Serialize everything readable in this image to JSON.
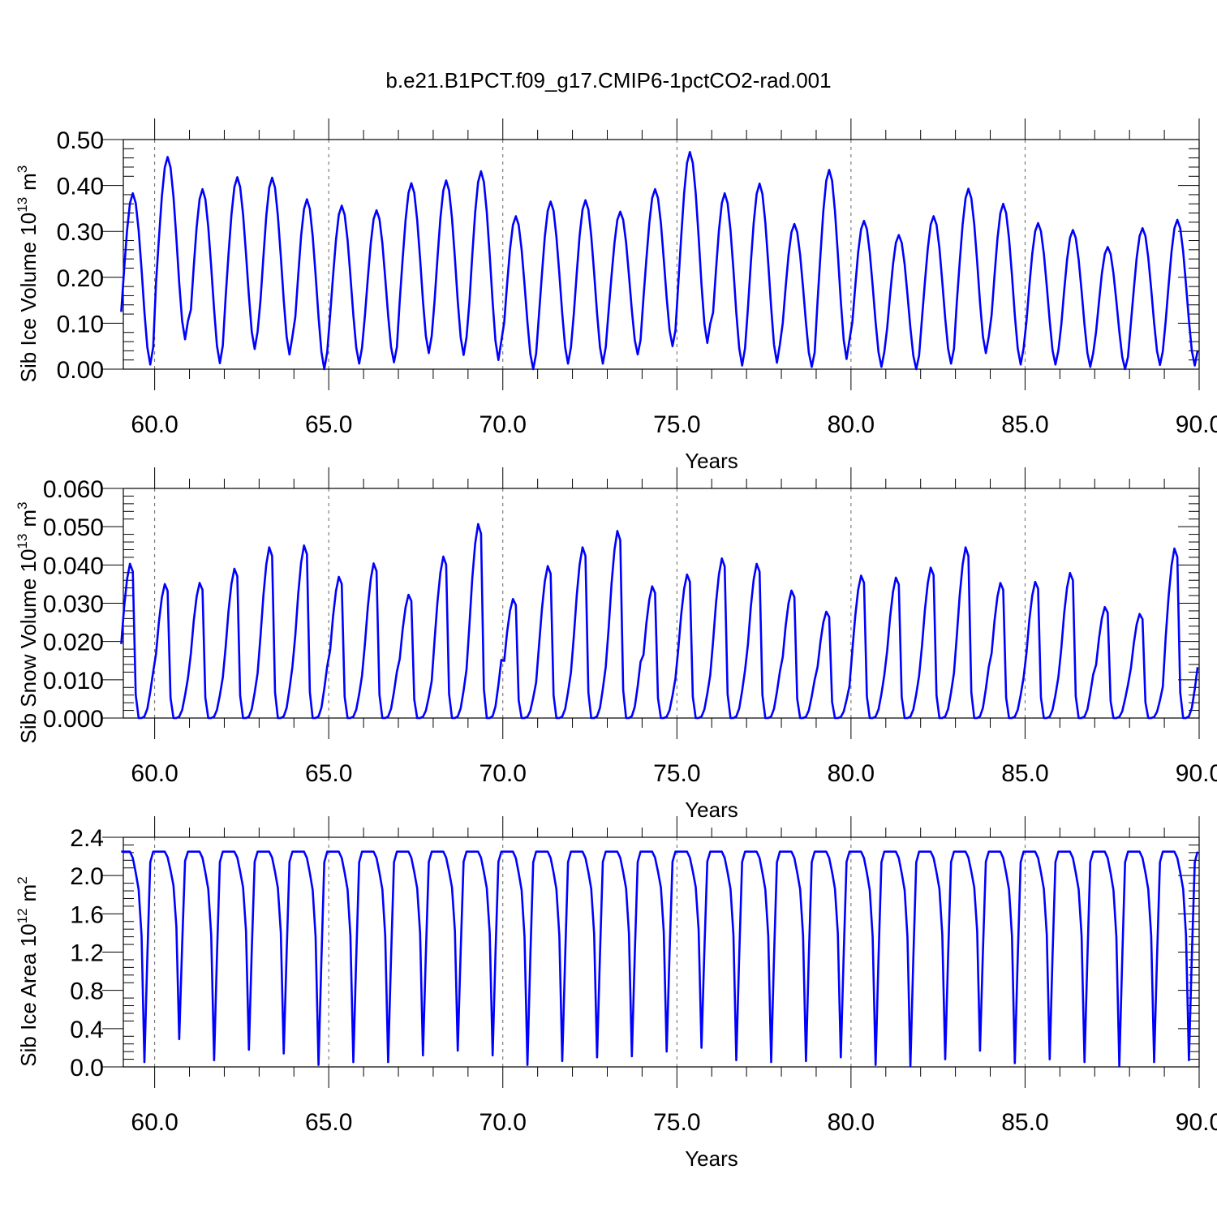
{
  "figure_title": "b.e21.B1PCT.f09_g17.CMIP6-1pctCO2-rad.001",
  "series_color": "#0000ff",
  "chart_data": [
    {
      "type": "line",
      "ylabel_main": "Sib Ice Volume 10",
      "ylabel_exp": "13",
      "ylabel_unit": "m",
      "ylabel_unit_exp": "3",
      "xlabel": "Years",
      "xlim": [
        59.1,
        90.0
      ],
      "ylim": [
        0.0,
        0.5
      ],
      "yticks": [
        0.0,
        0.1,
        0.2,
        0.3,
        0.4,
        0.5
      ],
      "ytick_labels": [
        "0.00",
        "0.10",
        "0.20",
        "0.30",
        "0.40",
        "0.50"
      ],
      "xticks": [
        60,
        65,
        70,
        75,
        80,
        85,
        90
      ],
      "xtick_labels": [
        "60.0",
        "65.0",
        "70.0",
        "75.0",
        "80.0",
        "85.0",
        "90.0"
      ],
      "grid_x": true,
      "x_start": 59.04,
      "seasonal_peaks": [
        0.383,
        0.462,
        0.392,
        0.418,
        0.417,
        0.37,
        0.356,
        0.346,
        0.405,
        0.411,
        0.431,
        0.333,
        0.365,
        0.368,
        0.343,
        0.392,
        0.473,
        0.383,
        0.404,
        0.316,
        0.434,
        0.323,
        0.292,
        0.333,
        0.393,
        0.36,
        0.318,
        0.303,
        0.266,
        0.307,
        0.325
      ],
      "seasonal_minima": [
        0.01,
        0.065,
        0.013,
        0.044,
        0.032,
        0.0,
        0.012,
        0.015,
        0.035,
        0.031,
        0.02,
        0.0,
        0.012,
        0.012,
        0.032,
        0.05,
        0.057,
        0.008,
        0.014,
        0.005,
        0.022,
        0.005,
        0.0,
        0.012,
        0.035,
        0.01,
        0.01,
        0.005,
        0.0,
        0.009,
        0.008
      ],
      "series": [
        {
          "values": []
        }
      ]
    },
    {
      "type": "line",
      "ylabel_main": "Sib Snow Volume 10",
      "ylabel_exp": "13",
      "ylabel_unit": "m",
      "ylabel_unit_exp": "3",
      "xlabel": "Years",
      "xlim": [
        59.1,
        90.0
      ],
      "ylim": [
        0.0,
        0.06
      ],
      "yticks": [
        0.0,
        0.01,
        0.02,
        0.03,
        0.04,
        0.05,
        0.06
      ],
      "ytick_labels": [
        "0.000",
        "0.010",
        "0.020",
        "0.030",
        "0.040",
        "0.050",
        "0.060"
      ],
      "xticks": [
        60,
        65,
        70,
        75,
        80,
        85,
        90
      ],
      "xtick_labels": [
        "60.0",
        "65.0",
        "70.0",
        "75.0",
        "80.0",
        "85.0",
        "90.0"
      ],
      "grid_x": true,
      "x_start": 59.04,
      "seasonal_peaks": [
        0.0403,
        0.035,
        0.0353,
        0.039,
        0.0446,
        0.0451,
        0.0369,
        0.0404,
        0.0322,
        0.0422,
        0.0507,
        0.0311,
        0.0397,
        0.0446,
        0.0489,
        0.0344,
        0.0375,
        0.0417,
        0.0403,
        0.0333,
        0.0278,
        0.0372,
        0.0367,
        0.0393,
        0.0446,
        0.0353,
        0.0356,
        0.0379,
        0.029,
        0.0272,
        0.0443
      ],
      "series": [
        {
          "values": []
        }
      ]
    },
    {
      "type": "line",
      "ylabel_main": "Sib Ice Area 10",
      "ylabel_exp": "12",
      "ylabel_unit": "m",
      "ylabel_unit_exp": "2",
      "xlabel": "Years",
      "xlim": [
        59.1,
        90.0
      ],
      "ylim": [
        0.0,
        2.4
      ],
      "yticks": [
        0.0,
        0.4,
        0.8,
        1.2,
        1.6,
        2.0,
        2.4
      ],
      "ytick_labels": [
        "0.0",
        "0.4",
        "0.8",
        "1.2",
        "1.6",
        "2.0",
        "2.4"
      ],
      "xticks": [
        60,
        65,
        70,
        75,
        80,
        85,
        90
      ],
      "xtick_labels": [
        "60.0",
        "65.0",
        "70.0",
        "75.0",
        "80.0",
        "85.0",
        "90.0"
      ],
      "grid_x": true,
      "x_start": 59.04,
      "seasonal_minima": [
        0.05,
        0.29,
        0.07,
        0.18,
        0.14,
        0.02,
        0.05,
        0.05,
        0.12,
        0.17,
        0.12,
        0.02,
        0.06,
        0.1,
        0.11,
        0.16,
        0.2,
        0.07,
        0.05,
        0.06,
        0.1,
        0.02,
        0.01,
        0.08,
        0.17,
        0.04,
        0.08,
        0.05,
        0.01,
        0.05,
        0.07
      ],
      "series": [
        {
          "values": []
        }
      ]
    }
  ]
}
